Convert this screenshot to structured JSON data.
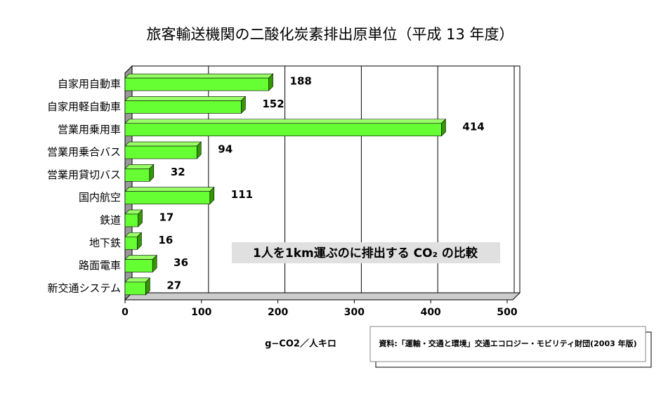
{
  "chart_data": {
    "type": "bar",
    "orientation": "horizontal",
    "title": "旅客輸送機関の二酸化炭素排出原単位（平成 13 年度）",
    "categories": [
      "自家用自動車",
      "自家用軽自動車",
      "営業用乗用車",
      "営業用乗合バス",
      "営業用貸切バス",
      "国内航空",
      "鉄道",
      "地下鉄",
      "路面電車",
      "新交通システム"
    ],
    "values": [
      188,
      152,
      414,
      94,
      32,
      111,
      17,
      16,
      36,
      27
    ],
    "color": "#66ff33",
    "xlim": [
      0,
      500
    ],
    "xticks": [
      0,
      100,
      200,
      300,
      400,
      500
    ],
    "grid": true,
    "x_label": "g−CO2／人キロ",
    "annotation": "1人を1km運ぶのに排出する CO₂ の比較",
    "source": "資料:「運輸・交通と環境」交通エコロジー・モビリティ財団(2003 年版)"
  }
}
